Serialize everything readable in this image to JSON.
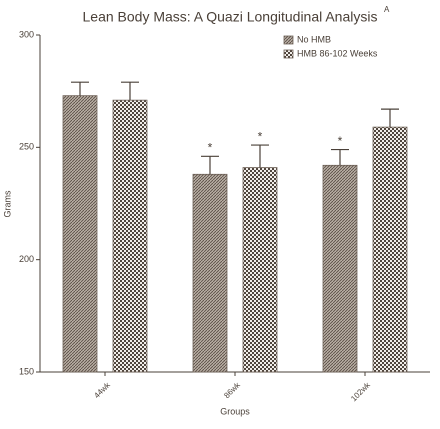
{
  "chart_data": {
    "type": "bar",
    "title": "Lean Body Mass: A Quazi Longitudinal Analysis",
    "title_superscript": "A",
    "x_label": "Groups",
    "y_label": "Grams",
    "categories": [
      "44wk",
      "86wk",
      "102wk"
    ],
    "series": [
      {
        "name": "No HMB",
        "color": "#6e6258",
        "pattern": "hatch",
        "values": [
          273,
          238,
          242
        ],
        "errors": [
          6,
          8,
          7
        ],
        "significance": [
          null,
          "*",
          "*"
        ]
      },
      {
        "name": "HMB 86-102 Weeks",
        "color": "#6e6258",
        "pattern": "check",
        "values": [
          271,
          241,
          259
        ],
        "errors": [
          8,
          10,
          8
        ],
        "significance": [
          null,
          "*",
          null
        ]
      }
    ],
    "ylim": [
      150,
      300
    ],
    "yticks": [
      150,
      200,
      250,
      300
    ],
    "legend": "top-right"
  }
}
